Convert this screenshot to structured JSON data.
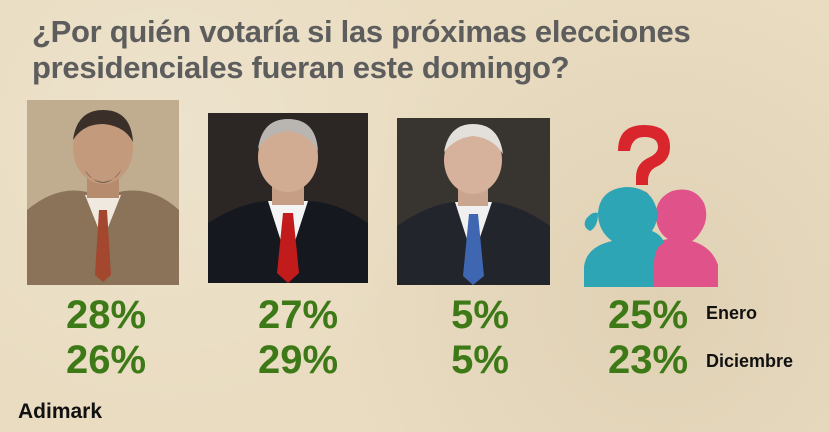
{
  "title_lines": [
    "¿Por quién votaría si las próximas elecciones",
    "presidenciales fueran este domingo?"
  ],
  "source": "Adimark",
  "colors": {
    "percent": "#3d7a17",
    "title": "#5d5d5d",
    "background": "#e9dcc1"
  },
  "chart_data": {
    "type": "table",
    "title": "¿Por quién votaría si las próximas elecciones presidenciales fueran este domingo?",
    "row_labels": [
      "Enero",
      "Diciembre"
    ],
    "columns": [
      {
        "values": [
          28,
          26
        ],
        "labels": [
          "28%",
          "26%"
        ]
      },
      {
        "values": [
          27,
          29
        ],
        "labels": [
          "27%",
          "29%"
        ]
      },
      {
        "values": [
          5,
          5
        ],
        "labels": [
          "5%",
          "5%"
        ]
      },
      {
        "values": [
          25,
          23
        ],
        "labels": [
          "25%",
          "23%"
        ]
      }
    ],
    "source": "Adimark"
  }
}
